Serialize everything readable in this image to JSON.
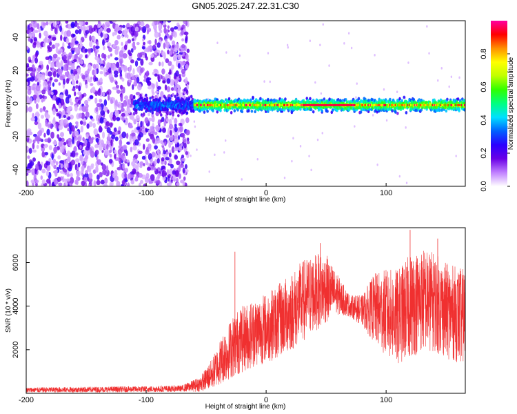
{
  "chart_data": [
    {
      "type": "heatmap",
      "title": "GN05.2025.247.22.31.C30",
      "xlabel": "Height of straight line (km)",
      "ylabel": "Frequency (Hz)",
      "xlim": [
        -200,
        166
      ],
      "ylim": [
        -50,
        50
      ],
      "xticks": [
        -200,
        -100,
        0,
        100
      ],
      "yticks": [
        -40,
        -20,
        0,
        20,
        40
      ],
      "tone_frequency_hz": -1,
      "colorbar": {
        "label": "Normalized spectral amplitude",
        "range": [
          0,
          1
        ],
        "ticks": [
          "0.0",
          "0.2",
          "0.4",
          "0.6",
          "0.8"
        ],
        "tick_values": [
          0.0,
          0.2,
          0.4,
          0.6,
          0.8
        ],
        "colors": [
          "#ffffff",
          "#c080ff",
          "#6a00e6",
          "#2a00ff",
          "#0060ff",
          "#00e0ff",
          "#00ff80",
          "#30ff00",
          "#c0ff00",
          "#ffff00",
          "#ff9000",
          "#ff0000",
          "#ff00a0"
        ]
      },
      "regions": [
        {
          "name": "noise",
          "x_range": [
            -200,
            -65
          ],
          "description_amplitude": 0.15
        },
        {
          "name": "signal",
          "x_range": [
            -65,
            166
          ],
          "peak_amplitude": 0.95
        }
      ]
    },
    {
      "type": "line",
      "xlabel": "Height of straight line (km)",
      "ylabel": "SNR (10 * v/v)",
      "xlim": [
        -200,
        166
      ],
      "ylim": [
        0,
        7600
      ],
      "xticks": [
        -200,
        -100,
        0,
        100
      ],
      "yticks": [
        2000,
        4000,
        6000
      ],
      "color": "#f03030",
      "envelope_x": [
        -200,
        -150,
        -100,
        -70,
        -55,
        -45,
        -35,
        -25,
        -10,
        0,
        10,
        20,
        30,
        40,
        50,
        60,
        70,
        80,
        90,
        100,
        110,
        120,
        130,
        140,
        150,
        160,
        166
      ],
      "envelope_mean": [
        150,
        170,
        190,
        220,
        420,
        900,
        1700,
        2300,
        2800,
        3000,
        3300,
        3700,
        4200,
        4600,
        4800,
        4500,
        4000,
        3800,
        3900,
        3700,
        3500,
        4000,
        4300,
        4200,
        3800,
        3600,
        3500
      ],
      "envelope_spread": [
        120,
        130,
        140,
        150,
        350,
        700,
        1200,
        1500,
        1600,
        1600,
        1700,
        1800,
        1900,
        1800,
        1600,
        900,
        500,
        700,
        1600,
        2000,
        2200,
        2400,
        2400,
        2300,
        2200,
        2200,
        2200
      ],
      "spikes": [
        {
          "x": -26,
          "y": 6500
        },
        {
          "x": 45,
          "y": 6900
        },
        {
          "x": 120,
          "y": 7500
        },
        {
          "x": 143,
          "y": 7100
        }
      ]
    }
  ]
}
